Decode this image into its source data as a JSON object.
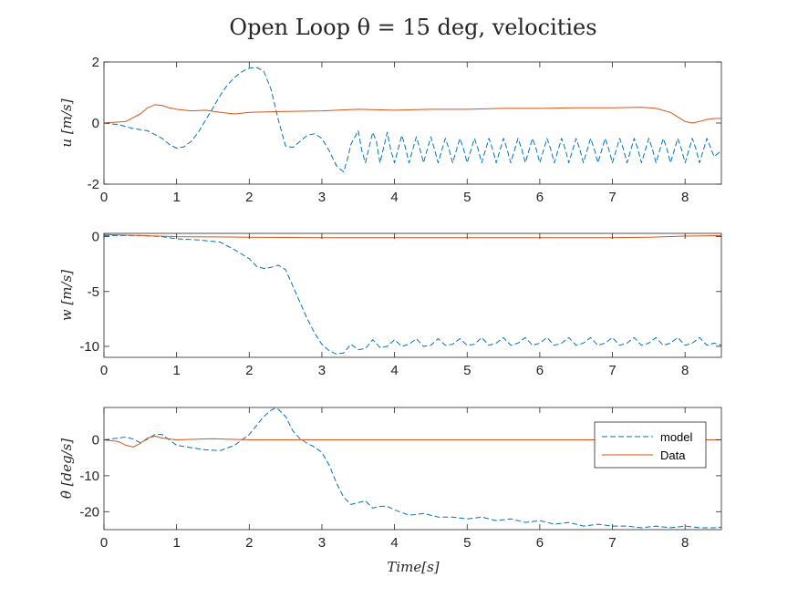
{
  "figure": {
    "title": "Open Loop θ = 15 deg, velocities",
    "xlabel": "Time[s]"
  },
  "colors": {
    "model": "#0072BD",
    "data": "#D95319",
    "axis": "#262626"
  },
  "legend": {
    "placement": "top-right of bottom subplot",
    "entries": [
      "model",
      "Data"
    ]
  },
  "chart_data": [
    {
      "type": "line",
      "ylabel": "u [m/s]",
      "xlim": [
        0,
        8.5
      ],
      "ylim": [
        -2,
        2
      ],
      "xticks": [
        0,
        1,
        2,
        3,
        4,
        5,
        6,
        7,
        8
      ],
      "yticks": [
        -2,
        0,
        2
      ],
      "ytick_labels": [
        "-2",
        "0",
        "2"
      ],
      "grid": false,
      "series": [
        {
          "name": "model",
          "style": "dashed",
          "x": [
            0,
            0.2,
            0.4,
            0.6,
            0.8,
            0.9,
            1.0,
            1.1,
            1.2,
            1.3,
            1.4,
            1.5,
            1.6,
            1.7,
            1.8,
            1.9,
            2.0,
            2.1,
            2.2,
            2.3,
            2.4,
            2.5,
            2.6,
            2.7,
            2.8,
            2.9,
            3.0,
            3.1,
            3.2,
            3.3,
            3.35,
            3.4,
            3.5,
            3.55,
            3.6,
            3.7,
            3.75,
            3.8,
            3.9,
            3.95,
            4.0,
            4.1,
            4.15,
            4.2,
            4.3,
            4.35,
            4.4,
            4.5,
            4.55,
            4.6,
            4.7,
            4.75,
            4.8,
            4.9,
            4.95,
            5.0,
            5.1,
            5.15,
            5.2,
            5.3,
            5.35,
            5.4,
            5.5,
            5.55,
            5.6,
            5.7,
            5.75,
            5.8,
            5.9,
            5.95,
            6.0,
            6.1,
            6.15,
            6.2,
            6.3,
            6.35,
            6.4,
            6.5,
            6.55,
            6.6,
            6.7,
            6.75,
            6.8,
            6.9,
            6.95,
            7.0,
            7.1,
            7.15,
            7.2,
            7.3,
            7.35,
            7.4,
            7.5,
            7.55,
            7.6,
            7.7,
            7.75,
            7.8,
            7.9,
            7.95,
            8.0,
            8.1,
            8.15,
            8.2,
            8.3,
            8.35,
            8.4,
            8.5
          ],
          "y": [
            0,
            -0.05,
            -0.18,
            -0.25,
            -0.5,
            -0.7,
            -0.82,
            -0.78,
            -0.6,
            -0.3,
            0.1,
            0.5,
            0.9,
            1.25,
            1.5,
            1.68,
            1.8,
            1.82,
            1.7,
            1.1,
            0.1,
            -0.75,
            -0.8,
            -0.6,
            -0.4,
            -0.35,
            -0.5,
            -0.9,
            -1.4,
            -1.6,
            -1.2,
            -0.7,
            -0.25,
            -0.9,
            -1.3,
            -0.3,
            -0.6,
            -1.3,
            -0.3,
            -0.9,
            -1.3,
            -0.4,
            -0.8,
            -1.3,
            -0.45,
            -0.85,
            -1.3,
            -0.45,
            -0.85,
            -1.3,
            -0.5,
            -0.85,
            -1.3,
            -0.5,
            -0.85,
            -1.3,
            -0.5,
            -0.85,
            -1.3,
            -0.5,
            -0.85,
            -1.3,
            -0.5,
            -0.85,
            -1.3,
            -0.5,
            -0.85,
            -1.3,
            -0.5,
            -0.85,
            -1.3,
            -0.5,
            -0.85,
            -1.3,
            -0.5,
            -0.85,
            -1.3,
            -0.5,
            -0.85,
            -1.3,
            -0.5,
            -0.85,
            -1.3,
            -0.5,
            -0.85,
            -1.3,
            -0.5,
            -0.85,
            -1.3,
            -0.5,
            -0.85,
            -1.3,
            -0.5,
            -0.85,
            -1.3,
            -0.5,
            -0.85,
            -1.3,
            -0.5,
            -0.85,
            -1.3,
            -0.5,
            -0.85,
            -1.3,
            -0.5,
            -0.8,
            -1.1,
            -0.9
          ]
        },
        {
          "name": "Data",
          "style": "solid",
          "x": [
            0,
            0.3,
            0.5,
            0.6,
            0.7,
            0.8,
            0.9,
            1.0,
            1.2,
            1.4,
            1.6,
            1.8,
            2.0,
            2.5,
            3.0,
            3.5,
            4.0,
            4.5,
            5.0,
            5.5,
            6.0,
            6.5,
            7.0,
            7.4,
            7.6,
            7.8,
            7.9,
            8.0,
            8.1,
            8.2,
            8.3,
            8.4,
            8.5
          ],
          "y": [
            0,
            0.05,
            0.3,
            0.5,
            0.6,
            0.58,
            0.5,
            0.45,
            0.4,
            0.42,
            0.35,
            0.3,
            0.35,
            0.38,
            0.4,
            0.45,
            0.42,
            0.45,
            0.45,
            0.48,
            0.48,
            0.5,
            0.5,
            0.52,
            0.48,
            0.35,
            0.2,
            0.05,
            0.0,
            0.05,
            0.12,
            0.15,
            0.15
          ]
        }
      ]
    },
    {
      "type": "line",
      "ylabel": "w [m/s]",
      "xlim": [
        0,
        8.5
      ],
      "ylim": [
        -11,
        0.3
      ],
      "xticks": [
        0,
        1,
        2,
        3,
        4,
        5,
        6,
        7,
        8
      ],
      "yticks": [
        -10,
        -5,
        0
      ],
      "ytick_labels": [
        "-10",
        "-5",
        "0"
      ],
      "grid": false,
      "series": [
        {
          "name": "model",
          "style": "dashed",
          "x": [
            0,
            0.5,
            0.8,
            1.0,
            1.3,
            1.6,
            1.8,
            2.0,
            2.1,
            2.2,
            2.3,
            2.4,
            2.5,
            2.6,
            2.7,
            2.8,
            2.9,
            3.0,
            3.1,
            3.2,
            3.3,
            3.4,
            3.5,
            3.6,
            3.7,
            3.8,
            3.9,
            4.0,
            4.1,
            4.2,
            4.3,
            4.4,
            4.5,
            4.6,
            4.7,
            4.8,
            4.9,
            5.0,
            5.1,
            5.2,
            5.3,
            5.4,
            5.5,
            5.6,
            5.7,
            5.8,
            5.9,
            6.0,
            6.1,
            6.2,
            6.3,
            6.4,
            6.5,
            6.6,
            6.7,
            6.8,
            6.9,
            7.0,
            7.1,
            7.2,
            7.3,
            7.4,
            7.5,
            7.6,
            7.7,
            7.8,
            7.9,
            8.0,
            8.1,
            8.2,
            8.3,
            8.4,
            8.5
          ],
          "y": [
            0.1,
            0.1,
            0,
            -0.2,
            -0.3,
            -0.5,
            -1.2,
            -2.0,
            -2.7,
            -2.9,
            -2.8,
            -2.6,
            -3.0,
            -4.5,
            -6.0,
            -7.5,
            -8.8,
            -9.8,
            -10.4,
            -10.7,
            -10.6,
            -9.8,
            -10.3,
            -10.2,
            -9.4,
            -10.1,
            -10.0,
            -9.4,
            -10.0,
            -9.8,
            -9.3,
            -10.0,
            -9.9,
            -9.3,
            -9.9,
            -9.8,
            -9.3,
            -9.9,
            -9.8,
            -9.2,
            -9.9,
            -9.7,
            -9.2,
            -9.9,
            -9.7,
            -9.2,
            -9.9,
            -9.7,
            -9.2,
            -9.9,
            -9.7,
            -9.2,
            -9.9,
            -9.7,
            -9.2,
            -9.9,
            -9.7,
            -9.2,
            -9.9,
            -9.7,
            -9.2,
            -9.9,
            -9.7,
            -9.2,
            -9.9,
            -9.7,
            -9.2,
            -9.9,
            -9.7,
            -9.2,
            -9.9,
            -9.7,
            -9.9
          ]
        },
        {
          "name": "Data",
          "style": "solid",
          "x": [
            0,
            0.5,
            1.0,
            2.0,
            3.0,
            4.0,
            5.0,
            6.0,
            7.0,
            7.5,
            8.0,
            8.5
          ],
          "y": [
            0.2,
            0.1,
            0,
            -0.05,
            -0.1,
            -0.1,
            -0.1,
            -0.1,
            -0.1,
            -0.05,
            0.05,
            0.1
          ]
        }
      ]
    },
    {
      "type": "line",
      "ylabel": "θ̇ [deg/s]",
      "xlim": [
        0,
        8.5
      ],
      "ylim": [
        -25,
        9
      ],
      "xticks": [
        0,
        1,
        2,
        3,
        4,
        5,
        6,
        7,
        8
      ],
      "yticks": [
        -20,
        -10,
        0
      ],
      "ytick_labels": [
        "-20",
        "-10",
        "0"
      ],
      "grid": false,
      "series": [
        {
          "name": "model",
          "style": "dashed",
          "x": [
            0,
            0.2,
            0.3,
            0.4,
            0.5,
            0.6,
            0.7,
            0.8,
            0.9,
            1.0,
            1.2,
            1.4,
            1.6,
            1.8,
            2.0,
            2.1,
            2.2,
            2.3,
            2.35,
            2.4,
            2.5,
            2.6,
            2.7,
            2.8,
            2.9,
            3.0,
            3.1,
            3.2,
            3.3,
            3.4,
            3.5,
            3.6,
            3.7,
            3.8,
            3.9,
            4.0,
            4.2,
            4.4,
            4.6,
            4.8,
            5.0,
            5.2,
            5.4,
            5.6,
            5.8,
            6.0,
            6.2,
            6.4,
            6.6,
            6.8,
            7.0,
            7.2,
            7.4,
            7.6,
            7.8,
            8.0,
            8.2,
            8.4,
            8.5
          ],
          "y": [
            0,
            0.5,
            0.8,
            0.2,
            -0.8,
            0.2,
            1.5,
            1.5,
            0,
            -1.5,
            -2.2,
            -2.8,
            -3.0,
            -1.5,
            1.5,
            4.0,
            6.5,
            8.2,
            8.8,
            8.5,
            6.5,
            2.5,
            0.3,
            -1.0,
            -2.0,
            -3.5,
            -7.0,
            -12.0,
            -16.0,
            -18.0,
            -17.5,
            -17.0,
            -19.0,
            -18.5,
            -18.5,
            -19.5,
            -21.0,
            -20.5,
            -21.5,
            -21.5,
            -22.0,
            -21.5,
            -22.5,
            -22.0,
            -23.0,
            -22.5,
            -23.5,
            -23.0,
            -24.0,
            -23.5,
            -24.0,
            -24.0,
            -24.5,
            -24.0,
            -24.5,
            -24.0,
            -24.5,
            -24.5,
            -24.3
          ]
        },
        {
          "name": "Data",
          "style": "solid",
          "x": [
            0,
            0.2,
            0.3,
            0.4,
            0.5,
            0.6,
            0.7,
            0.8,
            1.0,
            1.5,
            2.0,
            3.0,
            4.0,
            5.0,
            6.0,
            7.0,
            8.0,
            8.5
          ],
          "y": [
            0,
            -0.5,
            -1.5,
            -2.0,
            -1.0,
            0.5,
            1.0,
            0.5,
            0,
            0.3,
            0,
            0,
            0,
            0,
            0,
            0,
            0,
            0
          ]
        }
      ]
    }
  ]
}
